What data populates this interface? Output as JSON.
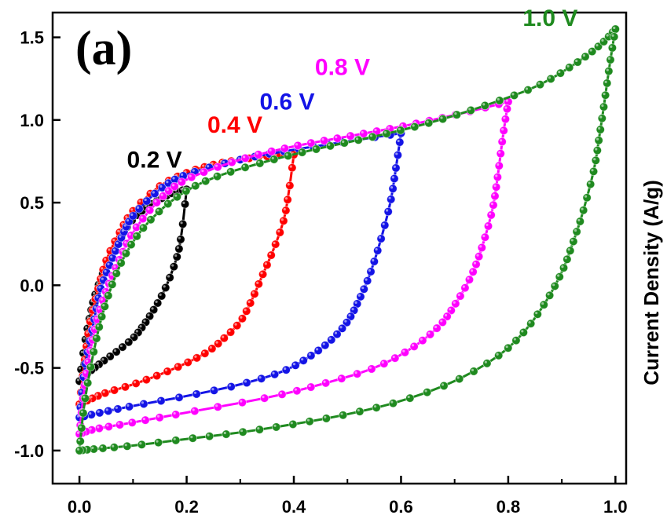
{
  "panel_label": "(a)",
  "chart_data": {
    "type": "line",
    "title": "",
    "xlabel": "",
    "ylabel": "Current Density (A/g)",
    "xlim": [
      -0.05,
      1.02
    ],
    "ylim": [
      -1.2,
      1.65
    ],
    "x_ticks": [
      "0.0",
      "0.2",
      "0.4",
      "0.6",
      "0.8",
      "1.0"
    ],
    "y_ticks": [
      "-1.0",
      "-0.5",
      "0.0",
      "0.5",
      "1.0",
      "1.5"
    ],
    "grid": false,
    "series": [
      {
        "name": "0.2 V",
        "color": "#000000",
        "vmax": 0.2,
        "top": 0.58,
        "bottom": -0.58,
        "upper": [
          [
            0.0,
            -0.58
          ],
          [
            0.01,
            -0.35
          ],
          [
            0.02,
            -0.18
          ],
          [
            0.03,
            -0.05
          ],
          [
            0.05,
            0.12
          ],
          [
            0.075,
            0.28
          ],
          [
            0.1,
            0.4
          ],
          [
            0.125,
            0.47
          ],
          [
            0.15,
            0.52
          ],
          [
            0.175,
            0.56
          ],
          [
            0.2,
            0.58
          ]
        ],
        "lower": [
          [
            0.2,
            0.58
          ],
          [
            0.19,
            0.3
          ],
          [
            0.18,
            0.15
          ],
          [
            0.16,
            -0.02
          ],
          [
            0.14,
            -0.14
          ],
          [
            0.12,
            -0.24
          ],
          [
            0.1,
            -0.32
          ],
          [
            0.07,
            -0.4
          ],
          [
            0.04,
            -0.47
          ],
          [
            0.02,
            -0.52
          ],
          [
            0.0,
            -0.58
          ]
        ]
      },
      {
        "name": "0.4 V",
        "color": "#ff0000",
        "vmax": 0.4,
        "top": 0.79,
        "bottom": -0.72,
        "upper": [
          [
            0.0,
            -0.72
          ],
          [
            0.01,
            -0.45
          ],
          [
            0.02,
            -0.22
          ],
          [
            0.035,
            -0.02
          ],
          [
            0.05,
            0.15
          ],
          [
            0.075,
            0.32
          ],
          [
            0.1,
            0.45
          ],
          [
            0.15,
            0.6
          ],
          [
            0.2,
            0.68
          ],
          [
            0.25,
            0.73
          ],
          [
            0.3,
            0.76
          ],
          [
            0.35,
            0.78
          ],
          [
            0.4,
            0.79
          ]
        ],
        "lower": [
          [
            0.4,
            0.79
          ],
          [
            0.39,
            0.55
          ],
          [
            0.38,
            0.38
          ],
          [
            0.36,
            0.2
          ],
          [
            0.34,
            0.05
          ],
          [
            0.32,
            -0.1
          ],
          [
            0.3,
            -0.22
          ],
          [
            0.27,
            -0.32
          ],
          [
            0.24,
            -0.4
          ],
          [
            0.2,
            -0.47
          ],
          [
            0.15,
            -0.54
          ],
          [
            0.1,
            -0.6
          ],
          [
            0.05,
            -0.65
          ],
          [
            0.02,
            -0.69
          ],
          [
            0.0,
            -0.72
          ]
        ]
      },
      {
        "name": "0.6 V",
        "color": "#1414e6",
        "vmax": 0.6,
        "top": 0.92,
        "bottom": -0.8,
        "upper": [
          [
            0.0,
            -0.8
          ],
          [
            0.01,
            -0.5
          ],
          [
            0.025,
            -0.25
          ],
          [
            0.04,
            -0.02
          ],
          [
            0.06,
            0.15
          ],
          [
            0.08,
            0.3
          ],
          [
            0.1,
            0.42
          ],
          [
            0.15,
            0.58
          ],
          [
            0.2,
            0.67
          ],
          [
            0.3,
            0.76
          ],
          [
            0.4,
            0.82
          ],
          [
            0.5,
            0.87
          ],
          [
            0.6,
            0.92
          ]
        ],
        "lower": [
          [
            0.6,
            0.92
          ],
          [
            0.59,
            0.7
          ],
          [
            0.58,
            0.5
          ],
          [
            0.56,
            0.25
          ],
          [
            0.54,
            0.05
          ],
          [
            0.52,
            -0.1
          ],
          [
            0.5,
            -0.22
          ],
          [
            0.47,
            -0.33
          ],
          [
            0.43,
            -0.43
          ],
          [
            0.38,
            -0.52
          ],
          [
            0.3,
            -0.6
          ],
          [
            0.2,
            -0.67
          ],
          [
            0.1,
            -0.73
          ],
          [
            0.04,
            -0.77
          ],
          [
            0.0,
            -0.8
          ]
        ]
      },
      {
        "name": "0.8 V",
        "color": "#ff00ff",
        "vmax": 0.8,
        "top": 1.11,
        "bottom": -0.9,
        "upper": [
          [
            0.0,
            -0.9
          ],
          [
            0.01,
            -0.6
          ],
          [
            0.025,
            -0.32
          ],
          [
            0.045,
            -0.08
          ],
          [
            0.07,
            0.12
          ],
          [
            0.1,
            0.32
          ],
          [
            0.15,
            0.52
          ],
          [
            0.2,
            0.64
          ],
          [
            0.3,
            0.76
          ],
          [
            0.4,
            0.84
          ],
          [
            0.5,
            0.9
          ],
          [
            0.6,
            0.96
          ],
          [
            0.7,
            1.03
          ],
          [
            0.8,
            1.11
          ]
        ],
        "lower": [
          [
            0.8,
            1.11
          ],
          [
            0.79,
            0.9
          ],
          [
            0.78,
            0.65
          ],
          [
            0.77,
            0.45
          ],
          [
            0.75,
            0.22
          ],
          [
            0.73,
            0.05
          ],
          [
            0.7,
            -0.12
          ],
          [
            0.67,
            -0.25
          ],
          [
            0.62,
            -0.38
          ],
          [
            0.55,
            -0.5
          ],
          [
            0.45,
            -0.6
          ],
          [
            0.35,
            -0.68
          ],
          [
            0.2,
            -0.77
          ],
          [
            0.1,
            -0.83
          ],
          [
            0.03,
            -0.87
          ],
          [
            0.0,
            -0.9
          ]
        ]
      },
      {
        "name": "1.0 V",
        "color": "#1f8a1f",
        "vmax": 1.0,
        "top": 1.55,
        "bottom": -1.0,
        "upper": [
          [
            0.0,
            -1.0
          ],
          [
            0.01,
            -0.7
          ],
          [
            0.03,
            -0.35
          ],
          [
            0.05,
            -0.1
          ],
          [
            0.08,
            0.15
          ],
          [
            0.12,
            0.35
          ],
          [
            0.18,
            0.53
          ],
          [
            0.25,
            0.65
          ],
          [
            0.35,
            0.75
          ],
          [
            0.45,
            0.83
          ],
          [
            0.55,
            0.9
          ],
          [
            0.65,
            0.98
          ],
          [
            0.75,
            1.08
          ],
          [
            0.85,
            1.2
          ],
          [
            0.92,
            1.33
          ],
          [
            0.97,
            1.45
          ],
          [
            1.0,
            1.55
          ]
        ],
        "lower": [
          [
            1.0,
            1.55
          ],
          [
            0.99,
            1.35
          ],
          [
            0.98,
            1.12
          ],
          [
            0.97,
            0.9
          ],
          [
            0.96,
            0.7
          ],
          [
            0.94,
            0.45
          ],
          [
            0.92,
            0.25
          ],
          [
            0.9,
            0.08
          ],
          [
            0.87,
            -0.1
          ],
          [
            0.83,
            -0.28
          ],
          [
            0.78,
            -0.43
          ],
          [
            0.7,
            -0.58
          ],
          [
            0.6,
            -0.7
          ],
          [
            0.5,
            -0.78
          ],
          [
            0.4,
            -0.84
          ],
          [
            0.3,
            -0.89
          ],
          [
            0.2,
            -0.93
          ],
          [
            0.1,
            -0.97
          ],
          [
            0.03,
            -0.99
          ],
          [
            0.0,
            -1.0
          ]
        ]
      }
    ]
  }
}
